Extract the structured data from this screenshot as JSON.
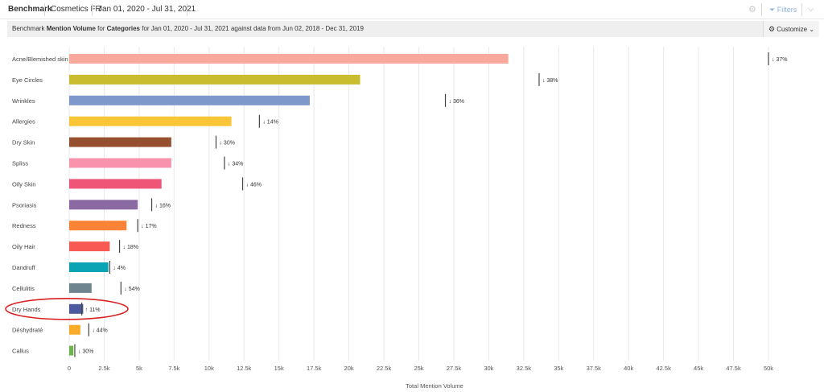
{
  "toolbar": {
    "benchmark_label": "Benchmark",
    "brand_label": "Cosmetics FR",
    "date_range": "Jan 01, 2020 - Jul 31, 2021",
    "filters_label": "Filters",
    "gear_icon": "gear-icon",
    "filter_icon": "filter-icon",
    "chevron_icon": "chevron-down-icon"
  },
  "subheader": {
    "prefix": "Benchmark ",
    "metric": "Mention Volume",
    "for_word": " for ",
    "dimension": "Categories",
    "rest": " for Jan 01, 2020 - Jul 31, 2021 against data from Jun 02, 2018 - Dec 31, 2019",
    "customize_label": "Customize",
    "customize_icon": "gear-icon"
  },
  "chart_data": {
    "type": "bar",
    "orientation": "horizontal",
    "xlabel": "Total Mention Volume",
    "xlim": [
      0,
      50000
    ],
    "xticks": [
      0,
      2500,
      5000,
      7500,
      10000,
      12500,
      15000,
      17500,
      20000,
      22500,
      25000,
      27500,
      30000,
      32500,
      35000,
      37500,
      40000,
      42500,
      45000,
      47500,
      50000
    ],
    "xtick_labels": [
      "0",
      "2.5k",
      "5k",
      "7.5k",
      "10k",
      "12.5k",
      "15k",
      "17.5k",
      "20k",
      "22.5k",
      "25k",
      "27.5k",
      "30k",
      "32.5k",
      "35k",
      "37.5k",
      "40k",
      "42.5k",
      "45k",
      "47.5k",
      "50k"
    ],
    "grid": "vertical",
    "categories": [
      "Acne/Blemished skin",
      "Eye Circles",
      "Wrinkles",
      "Allergies",
      "Dry Skin",
      "Spliss",
      "Oily Skin",
      "Psoriasis",
      "Redness",
      "Oily Hair",
      "Dandruff",
      "Cellulitis",
      "Dry Hands",
      "Déshydraté",
      "Callus"
    ],
    "values": [
      31400,
      20800,
      17200,
      11600,
      7300,
      7300,
      6600,
      4900,
      4100,
      2900,
      2800,
      1600,
      1000,
      800,
      300
    ],
    "benchmark_values": [
      50000,
      33600,
      26900,
      13600,
      10500,
      11100,
      12400,
      5900,
      4900,
      3600,
      2900,
      3700,
      900,
      1400,
      400
    ],
    "change_labels": [
      "↓ 37%",
      "↓ 38%",
      "↓ 36%",
      "↓ 14%",
      "↓ 30%",
      "↓ 34%",
      "↓ 46%",
      "↓ 16%",
      "↓ 17%",
      "↓ 18%",
      "↓ 4%",
      "↓ 54%",
      "↑ 11%",
      "↓ 44%",
      "↓ 30%"
    ],
    "colors": [
      "#f9a99c",
      "#c9bc2e",
      "#7e98cc",
      "#f8c637",
      "#96502f",
      "#f993ad",
      "#ee5577",
      "#8b6aa4",
      "#fb8336",
      "#f85952",
      "#0ba4b4",
      "#6e8590",
      "#4a5a9c",
      "#fbab2a",
      "#6fb44a"
    ],
    "highlighted_category": "Dry Hands"
  }
}
